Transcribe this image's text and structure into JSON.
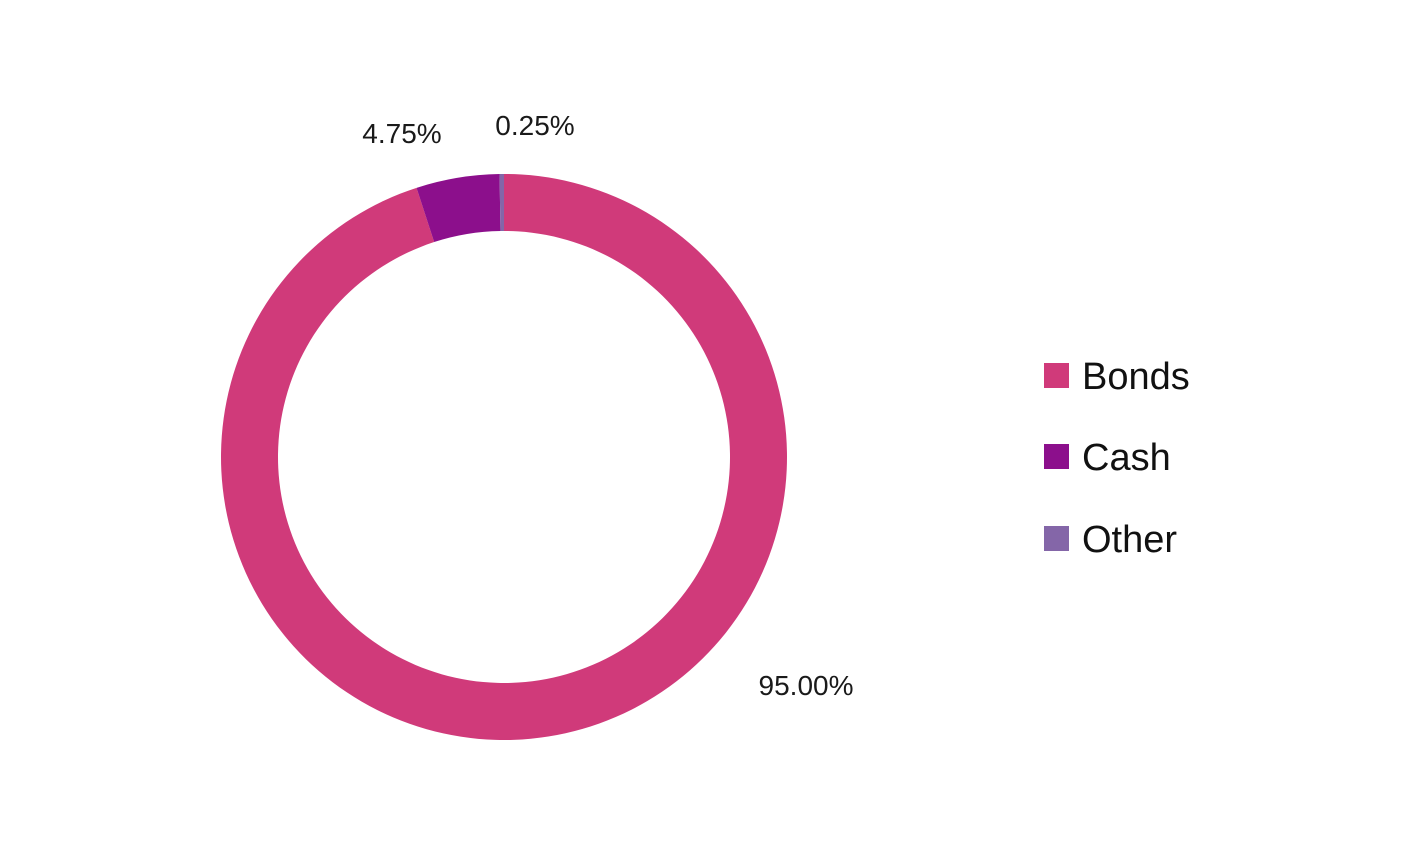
{
  "chart_data": {
    "type": "pie",
    "variant": "donut",
    "categories": [
      "Bonds",
      "Cash",
      "Other"
    ],
    "values": [
      95.0,
      4.75,
      0.25
    ],
    "labels": [
      "95.00%",
      "4.75%",
      "0.25%"
    ],
    "colors": [
      "#d03a7a",
      "#8c0f8c",
      "#8466a8"
    ],
    "title": "",
    "legend": "right",
    "start_angle": "top",
    "direction": "clockwise"
  }
}
